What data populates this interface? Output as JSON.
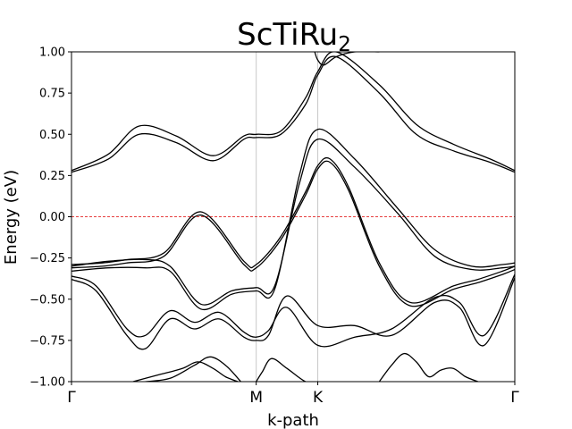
{
  "chart_data": {
    "type": "line",
    "title": "ScTiRu",
    "title_subscript": "2",
    "xlabel": "k-path",
    "ylabel": "Energy (eV)",
    "ylim": [
      -1.0,
      1.0
    ],
    "xlim": [
      0,
      7.2
    ],
    "yticks": [
      -1.0,
      -0.75,
      -0.5,
      -0.25,
      0.0,
      0.25,
      0.5,
      0.75,
      1.0
    ],
    "ytick_labels": [
      "−1.00",
      "−0.75",
      "−0.50",
      "−0.25",
      "0.00",
      "0.25",
      "0.50",
      "0.75",
      "1.00"
    ],
    "kpoints": [
      {
        "label": "Γ",
        "x": 0
      },
      {
        "label": "M",
        "x": 3.0
      },
      {
        "label": "K",
        "x": 4.0
      },
      {
        "label": "Γ",
        "x": 7.2
      }
    ],
    "fermi_level": 0.0,
    "colors": {
      "bands": "#000000",
      "fermi": "#e00000",
      "kpath_lines": "#c8c8c8"
    },
    "series": [
      {
        "x": [
          0,
          0.5,
          0.9,
          1.5,
          2.1,
          2.8,
          3.0,
          3.4,
          3.8,
          4.0,
          4.2,
          4.5,
          5.0,
          5.5,
          6.2,
          6.6,
          7.0,
          7.2
        ],
        "values": [
          -0.29,
          -0.28,
          -0.26,
          -0.22,
          0.03,
          -0.27,
          -0.29,
          -0.12,
          0.15,
          0.31,
          0.35,
          0.18,
          -0.28,
          -0.52,
          -0.42,
          -0.38,
          -0.33,
          -0.3
        ]
      },
      {
        "x": [
          0,
          0.5,
          0.9,
          1.5,
          2.1,
          2.8,
          3.0,
          3.4,
          3.8,
          4.0,
          4.2,
          4.5,
          5.0,
          5.5,
          6.2,
          6.6,
          7.0,
          7.2
        ],
        "values": [
          -0.31,
          -0.3,
          -0.28,
          -0.24,
          0.01,
          -0.29,
          -0.31,
          -0.14,
          0.13,
          0.29,
          0.33,
          0.16,
          -0.3,
          -0.54,
          -0.44,
          -0.4,
          -0.35,
          -0.32
        ]
      },
      {
        "x": [
          0,
          0.6,
          1.2,
          1.6,
          2.1,
          2.6,
          3.0,
          3.3,
          3.7,
          4.0,
          4.6,
          5.3,
          5.9,
          6.5,
          7.0,
          7.2
        ],
        "values": [
          -0.3,
          -0.27,
          -0.26,
          -0.3,
          -0.53,
          -0.45,
          -0.43,
          -0.42,
          0.2,
          0.47,
          0.3,
          0.02,
          -0.24,
          -0.32,
          -0.31,
          -0.3
        ]
      },
      {
        "x": [
          0,
          0.6,
          1.2,
          1.6,
          2.1,
          2.6,
          3.0,
          3.3,
          3.7,
          4.0,
          4.6,
          5.3,
          5.9,
          6.5,
          7.0,
          7.2
        ],
        "values": [
          -0.33,
          -0.31,
          -0.31,
          -0.33,
          -0.56,
          -0.47,
          -0.45,
          -0.44,
          0.25,
          0.53,
          0.35,
          0.05,
          -0.2,
          -0.3,
          -0.29,
          -0.28
        ]
      },
      {
        "x": [
          0,
          0.4,
          0.9,
          1.2,
          1.6,
          2.0,
          2.4,
          2.8,
          3.0,
          3.2,
          3.5,
          4.0,
          4.6,
          5.2,
          5.9,
          6.3,
          6.7,
          7.2
        ],
        "values": [
          -0.38,
          -0.45,
          -0.72,
          -0.8,
          -0.62,
          -0.68,
          -0.62,
          -0.73,
          -0.75,
          -0.72,
          -0.48,
          -0.66,
          -0.66,
          -0.72,
          -0.52,
          -0.55,
          -0.78,
          -0.37
        ]
      },
      {
        "x": [
          0,
          0.4,
          0.9,
          1.2,
          1.6,
          2.0,
          2.4,
          2.8,
          3.0,
          3.2,
          3.5,
          4.0,
          4.6,
          5.2,
          5.9,
          6.3,
          6.7,
          7.2
        ],
        "values": [
          -0.36,
          -0.42,
          -0.68,
          -0.72,
          -0.57,
          -0.64,
          -0.58,
          -0.7,
          -0.73,
          -0.69,
          -0.55,
          -0.78,
          -0.73,
          -0.68,
          -0.49,
          -0.52,
          -0.72,
          -0.35
        ]
      },
      {
        "x": [
          0,
          0.6,
          1.1,
          1.7,
          2.3,
          2.8,
          3.0,
          3.4,
          3.8,
          4.0,
          4.3,
          5.0,
          5.6,
          6.2,
          6.8,
          7.2
        ],
        "values": [
          0.27,
          0.35,
          0.5,
          0.45,
          0.34,
          0.47,
          0.48,
          0.5,
          0.68,
          0.86,
          0.97,
          0.75,
          0.5,
          0.4,
          0.33,
          0.27
        ]
      },
      {
        "x": [
          0,
          0.6,
          1.1,
          1.7,
          2.3,
          2.8,
          3.0,
          3.4,
          3.8,
          4.0,
          4.3,
          5.0,
          5.6,
          6.2,
          6.8,
          7.2
        ],
        "values": [
          0.28,
          0.38,
          0.55,
          0.49,
          0.37,
          0.49,
          0.5,
          0.52,
          0.72,
          0.88,
          1.0,
          0.8,
          0.56,
          0.44,
          0.35,
          0.28
        ]
      },
      {
        "x": [
          3.95,
          4.0,
          4.1,
          4.3,
          4.6,
          5.0
        ],
        "values": [
          1.0,
          0.95,
          0.92,
          0.97,
          1.0,
          1.0
        ]
      },
      {
        "x": [
          1.0,
          1.4,
          1.8,
          2.05,
          2.3,
          2.5,
          2.7
        ],
        "values": [
          -1.0,
          -0.96,
          -0.92,
          -0.88,
          -0.92,
          -0.97,
          -1.0
        ]
      },
      {
        "x": [
          1.2,
          1.6,
          2.0,
          2.25,
          2.5,
          2.75
        ],
        "values": [
          -1.0,
          -0.98,
          -0.9,
          -0.85,
          -0.9,
          -1.0
        ]
      },
      {
        "x": [
          3.0,
          3.1,
          3.25,
          3.5,
          3.8,
          4.0
        ],
        "values": [
          -1.0,
          -0.94,
          -0.86,
          -0.92,
          -1.0,
          -1.0
        ]
      },
      {
        "x": [
          5.0,
          5.2,
          5.4,
          5.6,
          5.8,
          6.0,
          6.2,
          6.4,
          6.6
        ],
        "values": [
          -1.0,
          -0.9,
          -0.83,
          -0.88,
          -0.97,
          -0.93,
          -0.92,
          -0.97,
          -1.0
        ]
      }
    ]
  }
}
